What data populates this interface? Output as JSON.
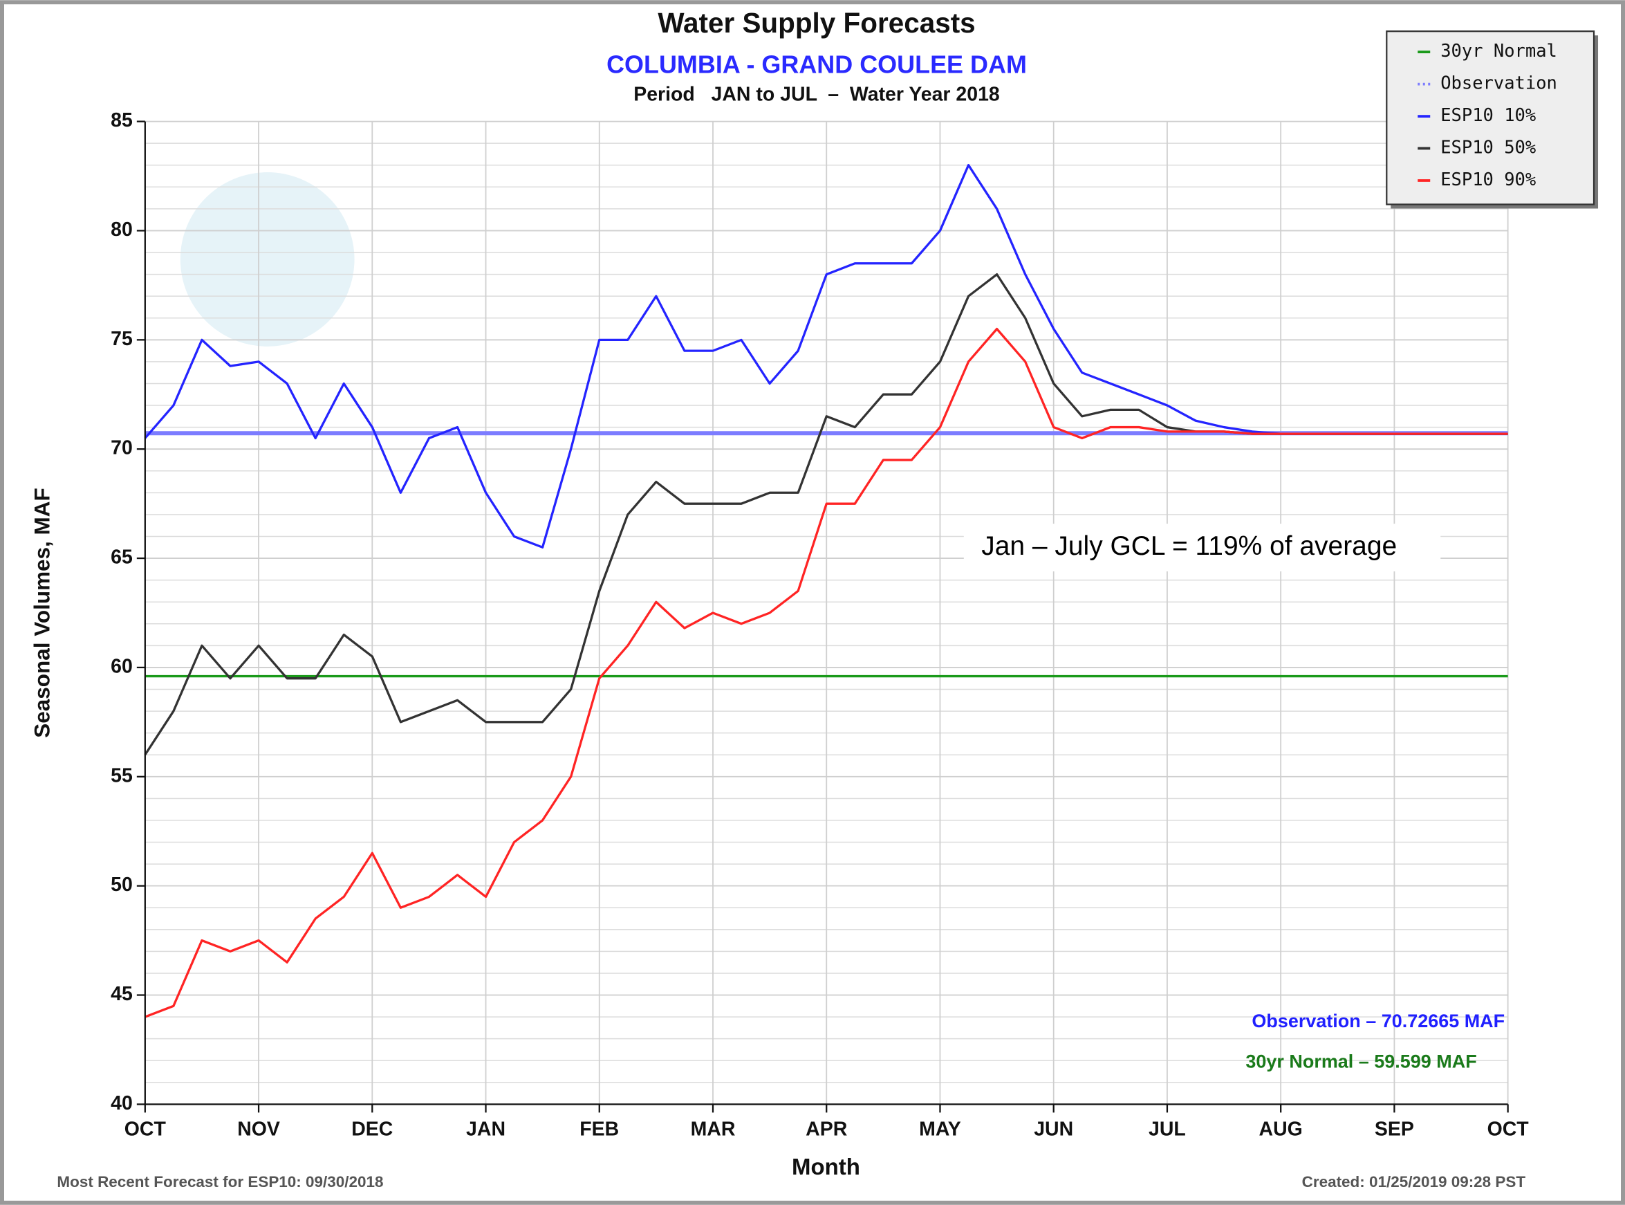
{
  "chart_data": {
    "type": "line",
    "title": "Water Supply Forecasts",
    "subtitle": "COLUMBIA - GRAND COULEE DAM",
    "period": "Period   JAN to JUL  –  Water Year 2018",
    "ylabel": "Seasonal Volumes, MAF",
    "xlabel": "Month",
    "footer_left": "Most Recent Forecast for ESP10: 09/30/2018",
    "footer_right": "Created: 01/25/2019 09:28 PST",
    "annotations": [
      {
        "text": "Observation – 70.72665 MAF",
        "color": "#2020ff"
      },
      {
        "text": "30yr Normal – 59.599 MAF",
        "color": "#1a7a1a"
      },
      {
        "text": "Jan – July GCL = 119% of average",
        "color": "#000000"
      }
    ],
    "x": [
      0,
      0.25,
      0.5,
      0.75,
      1,
      1.25,
      1.5,
      1.75,
      2,
      2.25,
      2.5,
      2.75,
      3,
      3.25,
      3.5,
      3.75,
      4,
      4.25,
      4.5,
      4.75,
      5,
      5.25,
      5.5,
      5.75,
      6,
      6.25,
      6.5,
      6.75,
      7,
      7.25,
      7.5,
      7.75,
      8,
      8.25,
      8.5,
      8.75,
      9,
      9.25,
      9.5,
      9.75,
      10,
      11,
      12
    ],
    "xlim": [
      0,
      12
    ],
    "xticks": [
      {
        "value": 0,
        "label": "OCT"
      },
      {
        "value": 1,
        "label": "NOV"
      },
      {
        "value": 2,
        "label": "DEC"
      },
      {
        "value": 3,
        "label": "JAN"
      },
      {
        "value": 4,
        "label": "FEB"
      },
      {
        "value": 5,
        "label": "MAR"
      },
      {
        "value": 6,
        "label": "APR"
      },
      {
        "value": 7,
        "label": "MAY"
      },
      {
        "value": 8,
        "label": "JUN"
      },
      {
        "value": 9,
        "label": "JUL"
      },
      {
        "value": 10,
        "label": "AUG"
      },
      {
        "value": 11,
        "label": "SEP"
      },
      {
        "value": 12,
        "label": "OCT"
      }
    ],
    "ylim": [
      40,
      85
    ],
    "yticks": [
      40,
      45,
      50,
      55,
      60,
      65,
      70,
      75,
      80,
      85
    ],
    "ygrid_minor_step": 1,
    "grid": true,
    "legend": "upper right",
    "series": [
      {
        "name": "30yr Normal",
        "color": "#1a9a1a",
        "style": "solid",
        "values": [
          59.599,
          59.599,
          59.599,
          59.599,
          59.599,
          59.599,
          59.599,
          59.599,
          59.599,
          59.599,
          59.599,
          59.599,
          59.599,
          59.599,
          59.599,
          59.599,
          59.599,
          59.599,
          59.599,
          59.599,
          59.599,
          59.599,
          59.599,
          59.599,
          59.599,
          59.599,
          59.599,
          59.599,
          59.599,
          59.599,
          59.599,
          59.599,
          59.599,
          59.599,
          59.599,
          59.599,
          59.599,
          59.599,
          59.599,
          59.599,
          59.599,
          59.599,
          59.599
        ]
      },
      {
        "name": "Observation",
        "color": "#7c7cff",
        "style": "dotted",
        "values": [
          70.72665,
          70.72665,
          70.72665,
          70.72665,
          70.72665,
          70.72665,
          70.72665,
          70.72665,
          70.72665,
          70.72665,
          70.72665,
          70.72665,
          70.72665,
          70.72665,
          70.72665,
          70.72665,
          70.72665,
          70.72665,
          70.72665,
          70.72665,
          70.72665,
          70.72665,
          70.72665,
          70.72665,
          70.72665,
          70.72665,
          70.72665,
          70.72665,
          70.72665,
          70.72665,
          70.72665,
          70.72665,
          70.72665,
          70.72665,
          70.72665,
          70.72665,
          70.72665,
          70.72665,
          70.72665,
          70.72665,
          70.72665,
          70.72665,
          70.72665
        ]
      },
      {
        "name": "ESP10 10%",
        "color": "#2424ff",
        "style": "solid",
        "values": [
          70.5,
          72,
          75,
          73.8,
          74,
          73,
          70.5,
          73,
          71,
          68,
          70.5,
          71,
          68,
          66,
          65.5,
          70,
          75,
          75,
          77,
          74.5,
          74.5,
          75,
          73,
          74.5,
          78,
          78.5,
          78.5,
          78.5,
          80,
          83,
          81,
          78,
          75.5,
          73.5,
          73,
          72.5,
          72,
          71.3,
          71,
          70.8,
          70.7,
          70.7,
          70.7
        ]
      },
      {
        "name": "ESP10 50%",
        "color": "#333333",
        "style": "solid",
        "values": [
          56,
          58,
          61,
          59.5,
          61,
          59.5,
          59.5,
          61.5,
          60.5,
          57.5,
          58,
          58.5,
          57.5,
          57.5,
          57.5,
          59,
          63.5,
          67,
          68.5,
          67.5,
          67.5,
          67.5,
          68,
          68,
          71.5,
          71,
          72.5,
          72.5,
          74,
          77,
          78,
          76,
          73,
          71.5,
          71.8,
          71.8,
          71,
          70.8,
          70.8,
          70.7,
          70.7,
          70.7,
          70.7
        ]
      },
      {
        "name": "ESP10 90%",
        "color": "#ff2424",
        "style": "solid",
        "values": [
          44,
          44.5,
          47.5,
          47,
          47.5,
          46.5,
          48.5,
          49.5,
          51.5,
          49,
          49.5,
          50.5,
          49.5,
          52,
          53,
          55,
          59.5,
          61,
          63,
          61.8,
          62.5,
          62,
          62.5,
          63.5,
          67.5,
          67.5,
          69.5,
          69.5,
          71,
          74,
          75.5,
          74,
          71,
          70.5,
          71,
          71,
          70.8,
          70.8,
          70.8,
          70.7,
          70.7,
          70.7,
          70.7
        ]
      }
    ]
  }
}
